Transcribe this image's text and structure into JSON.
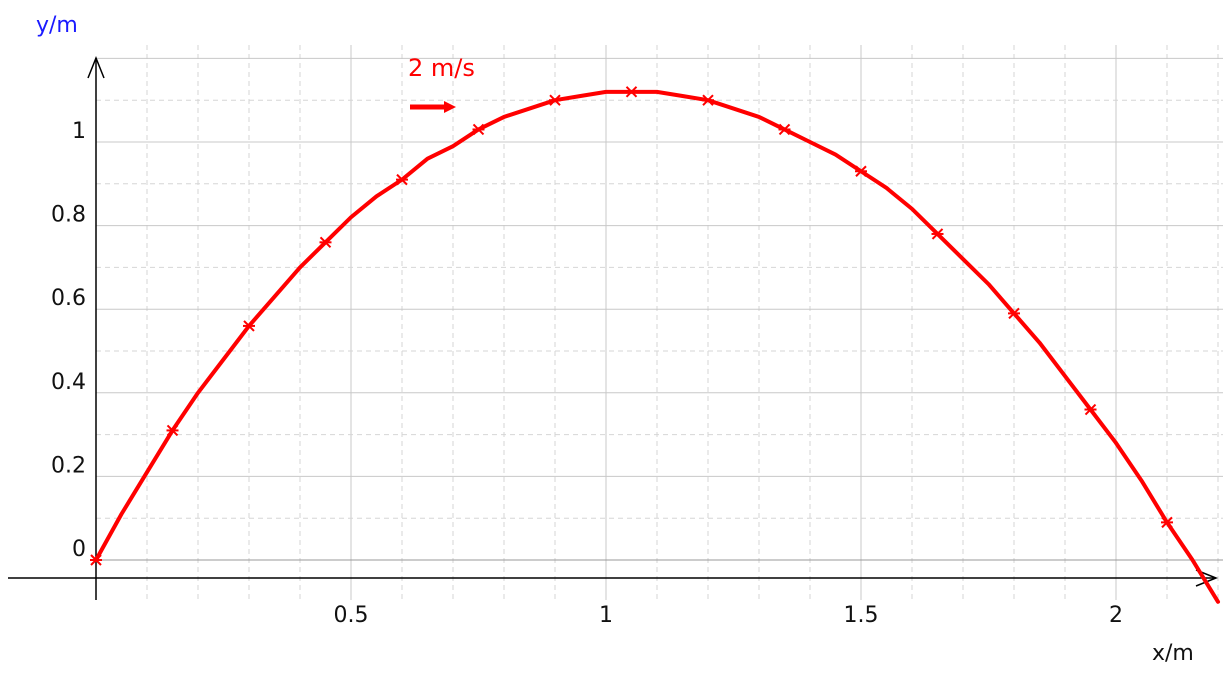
{
  "colors": {
    "curve": "#ff0000",
    "y_axis_label": "#1a1aff",
    "x_axis_label": "#111111",
    "axes": "#000000",
    "major_grid": "#c8c8c8",
    "minor_grid": "#d6d6d6"
  },
  "chart_data": {
    "type": "line",
    "xlabel": "x/m",
    "ylabel": "y/m",
    "xlim": [
      0,
      2.2
    ],
    "ylim": [
      -0.05,
      1.2
    ],
    "grid": true,
    "x_ticks": [
      "0.5",
      "1",
      "1.5",
      "2"
    ],
    "x_tick_values": [
      0.5,
      1,
      1.5,
      2
    ],
    "y_ticks": [
      "0",
      "0.2",
      "0.4",
      "0.6",
      "0.8",
      "1"
    ],
    "y_tick_values": [
      0,
      0.2,
      0.4,
      0.6,
      0.8,
      1
    ],
    "annotation": {
      "text": "2 m/s",
      "arrow": "right"
    },
    "series": [
      {
        "x": [
          0,
          0.05,
          0.1,
          0.15,
          0.2,
          0.25,
          0.3,
          0.35,
          0.4,
          0.45,
          0.5,
          0.55,
          0.6,
          0.65,
          0.7,
          0.75,
          0.8,
          0.85,
          0.9,
          0.95,
          1.0,
          1.05,
          1.1,
          1.15,
          1.2,
          1.25,
          1.3,
          1.35,
          1.4,
          1.45,
          1.5,
          1.55,
          1.6,
          1.65,
          1.7,
          1.75,
          1.8,
          1.85,
          1.9,
          1.95,
          2.0,
          2.05,
          2.1,
          2.15,
          2.2
        ],
        "y": [
          0,
          0.11,
          0.21,
          0.31,
          0.4,
          0.48,
          0.56,
          0.63,
          0.7,
          0.76,
          0.82,
          0.87,
          0.91,
          0.96,
          0.99,
          1.03,
          1.06,
          1.08,
          1.1,
          1.11,
          1.12,
          1.12,
          1.12,
          1.11,
          1.1,
          1.08,
          1.06,
          1.03,
          1.0,
          0.97,
          0.93,
          0.89,
          0.84,
          0.78,
          0.72,
          0.66,
          0.59,
          0.52,
          0.44,
          0.36,
          0.28,
          0.19,
          0.09,
          0.0,
          -0.1
        ]
      }
    ]
  }
}
